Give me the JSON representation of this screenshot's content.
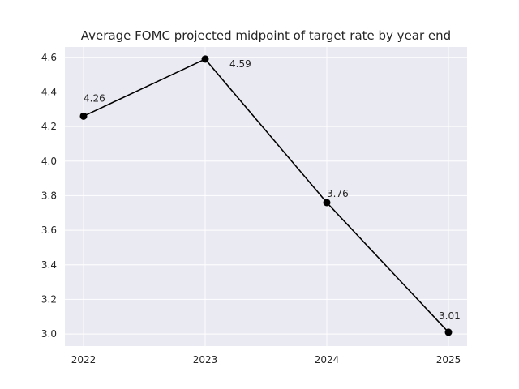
{
  "chart_data": {
    "type": "line",
    "title": "Average FOMC projected midpoint of target rate by year end",
    "xlabel": "",
    "ylabel": "",
    "x": [
      "2022",
      "2023",
      "2024",
      "2025"
    ],
    "series": [
      {
        "values": [
          4.26,
          4.59,
          3.76,
          3.01
        ],
        "color": "#000000"
      }
    ],
    "data_labels": [
      "4.26",
      "4.59",
      "3.76",
      "3.01"
    ],
    "ylim": [
      2.93,
      4.66
    ],
    "yticks": [
      "3.0",
      "3.2",
      "3.4",
      "3.6",
      "3.8",
      "4.0",
      "4.2",
      "4.4",
      "4.6"
    ],
    "grid": true,
    "background_color": "#eaeaf2",
    "grid_color": "#ffffff"
  }
}
